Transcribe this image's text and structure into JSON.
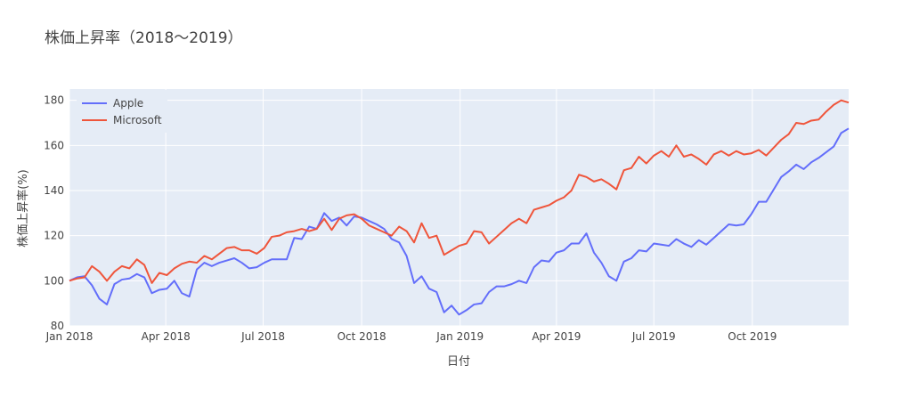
{
  "chart_data": {
    "type": "line",
    "title": "株価上昇率（2018〜2019）",
    "xlabel": "日付",
    "ylabel": "株価上昇率(%)",
    "x_tick_labels": [
      "Jan 2018",
      "Apr 2018",
      "Jul 2018",
      "Oct 2018",
      "Jan 2019",
      "Apr 2019",
      "Jul 2019",
      "Oct 2019"
    ],
    "x_ticks": [
      "2018-01-01",
      "2018-04-01",
      "2018-07-01",
      "2018-10-01",
      "2019-01-01",
      "2019-04-01",
      "2019-07-01",
      "2019-10-01"
    ],
    "xlim": [
      "2018-01-01",
      "2019-12-30"
    ],
    "y_ticks": [
      80,
      100,
      120,
      140,
      160,
      180
    ],
    "ylim": [
      80,
      185
    ],
    "grid": true,
    "legend_position": "top-left",
    "x": [
      "2018-01-01",
      "2018-01-08",
      "2018-01-15",
      "2018-01-22",
      "2018-01-29",
      "2018-02-05",
      "2018-02-12",
      "2018-02-19",
      "2018-02-26",
      "2018-03-05",
      "2018-03-12",
      "2018-03-19",
      "2018-03-26",
      "2018-04-02",
      "2018-04-09",
      "2018-04-16",
      "2018-04-23",
      "2018-04-30",
      "2018-05-07",
      "2018-05-14",
      "2018-05-21",
      "2018-05-28",
      "2018-06-04",
      "2018-06-11",
      "2018-06-18",
      "2018-06-25",
      "2018-07-02",
      "2018-07-09",
      "2018-07-16",
      "2018-07-23",
      "2018-07-30",
      "2018-08-06",
      "2018-08-13",
      "2018-08-20",
      "2018-08-27",
      "2018-09-03",
      "2018-09-10",
      "2018-09-17",
      "2018-09-24",
      "2018-10-01",
      "2018-10-08",
      "2018-10-15",
      "2018-10-22",
      "2018-10-29",
      "2018-11-05",
      "2018-11-12",
      "2018-11-19",
      "2018-11-26",
      "2018-12-03",
      "2018-12-10",
      "2018-12-17",
      "2018-12-24",
      "2018-12-31",
      "2019-01-07",
      "2019-01-14",
      "2019-01-21",
      "2019-01-28",
      "2019-02-04",
      "2019-02-11",
      "2019-02-18",
      "2019-02-25",
      "2019-03-04",
      "2019-03-11",
      "2019-03-18",
      "2019-03-25",
      "2019-04-01",
      "2019-04-08",
      "2019-04-15",
      "2019-04-22",
      "2019-04-29",
      "2019-05-06",
      "2019-05-13",
      "2019-05-20",
      "2019-05-27",
      "2019-06-03",
      "2019-06-10",
      "2019-06-17",
      "2019-06-24",
      "2019-07-01",
      "2019-07-08",
      "2019-07-15",
      "2019-07-22",
      "2019-07-29",
      "2019-08-05",
      "2019-08-12",
      "2019-08-19",
      "2019-08-26",
      "2019-09-02",
      "2019-09-09",
      "2019-09-16",
      "2019-09-23",
      "2019-09-30",
      "2019-10-07",
      "2019-10-14",
      "2019-10-21",
      "2019-10-28",
      "2019-11-04",
      "2019-11-11",
      "2019-11-18",
      "2019-11-25",
      "2019-12-02",
      "2019-12-09",
      "2019-12-16",
      "2019-12-23",
      "2019-12-30"
    ],
    "series": [
      {
        "name": "Apple",
        "color": "#636efa",
        "values": [
          100,
          101.5,
          102,
          98,
          92,
          89.5,
          98.5,
          100.5,
          101,
          103,
          101.5,
          94.5,
          96,
          96.5,
          100,
          94.5,
          93,
          105,
          108,
          106.5,
          108,
          109,
          110,
          108,
          105.5,
          106,
          108,
          109.5,
          109.5,
          109.5,
          119,
          118.5,
          124,
          123,
          130,
          126.5,
          128,
          124.5,
          128.5,
          128,
          126.5,
          125,
          123,
          118.5,
          117,
          111,
          99,
          102,
          96.5,
          95,
          86,
          89,
          85,
          87,
          89.5,
          90,
          95,
          97.5,
          97.5,
          98.5,
          100,
          99,
          106,
          109,
          108.5,
          112.5,
          113.5,
          116.5,
          116.5,
          121,
          112.5,
          108,
          102,
          100,
          108.5,
          110,
          113.5,
          113,
          116.5,
          116,
          115.5,
          118.5,
          116.5,
          115,
          118,
          116,
          119,
          122,
          125,
          124.5,
          125,
          129.5,
          135,
          135,
          140.5,
          146,
          148.5,
          151.5,
          149.5,
          152.5,
          154.5,
          157,
          159.5,
          165.5,
          167.5
        ]
      },
      {
        "name": "Microsoft",
        "color": "#ef553b",
        "values": [
          100,
          101,
          101.5,
          106.5,
          104,
          100,
          104,
          106.5,
          105.5,
          109.5,
          107,
          99,
          103.5,
          102.5,
          105.5,
          107.5,
          108.5,
          108,
          111,
          109.5,
          112,
          114.5,
          115,
          113.5,
          113.5,
          112,
          114.5,
          119.5,
          120,
          121.5,
          122,
          123,
          122,
          123,
          127.5,
          122.5,
          127.5,
          129,
          129.5,
          127.5,
          124.5,
          123,
          121.5,
          120,
          124,
          122,
          117,
          125.5,
          119,
          120,
          111.5,
          113.5,
          115.5,
          116.5,
          122,
          121.5,
          116.5,
          119.5,
          122.5,
          125.5,
          127.5,
          125.5,
          131.5,
          132.5,
          133.5,
          135.5,
          137,
          140,
          147,
          146,
          144,
          145,
          143,
          140.5,
          149,
          150,
          155,
          152,
          155.5,
          157.5,
          155,
          160,
          155,
          156,
          154,
          151.5,
          156,
          157.5,
          155.5,
          157.5,
          156,
          156.5,
          158,
          155.5,
          159,
          162.5,
          165,
          170,
          169.5,
          171,
          171.5,
          175,
          178,
          180,
          179
        ]
      }
    ]
  }
}
